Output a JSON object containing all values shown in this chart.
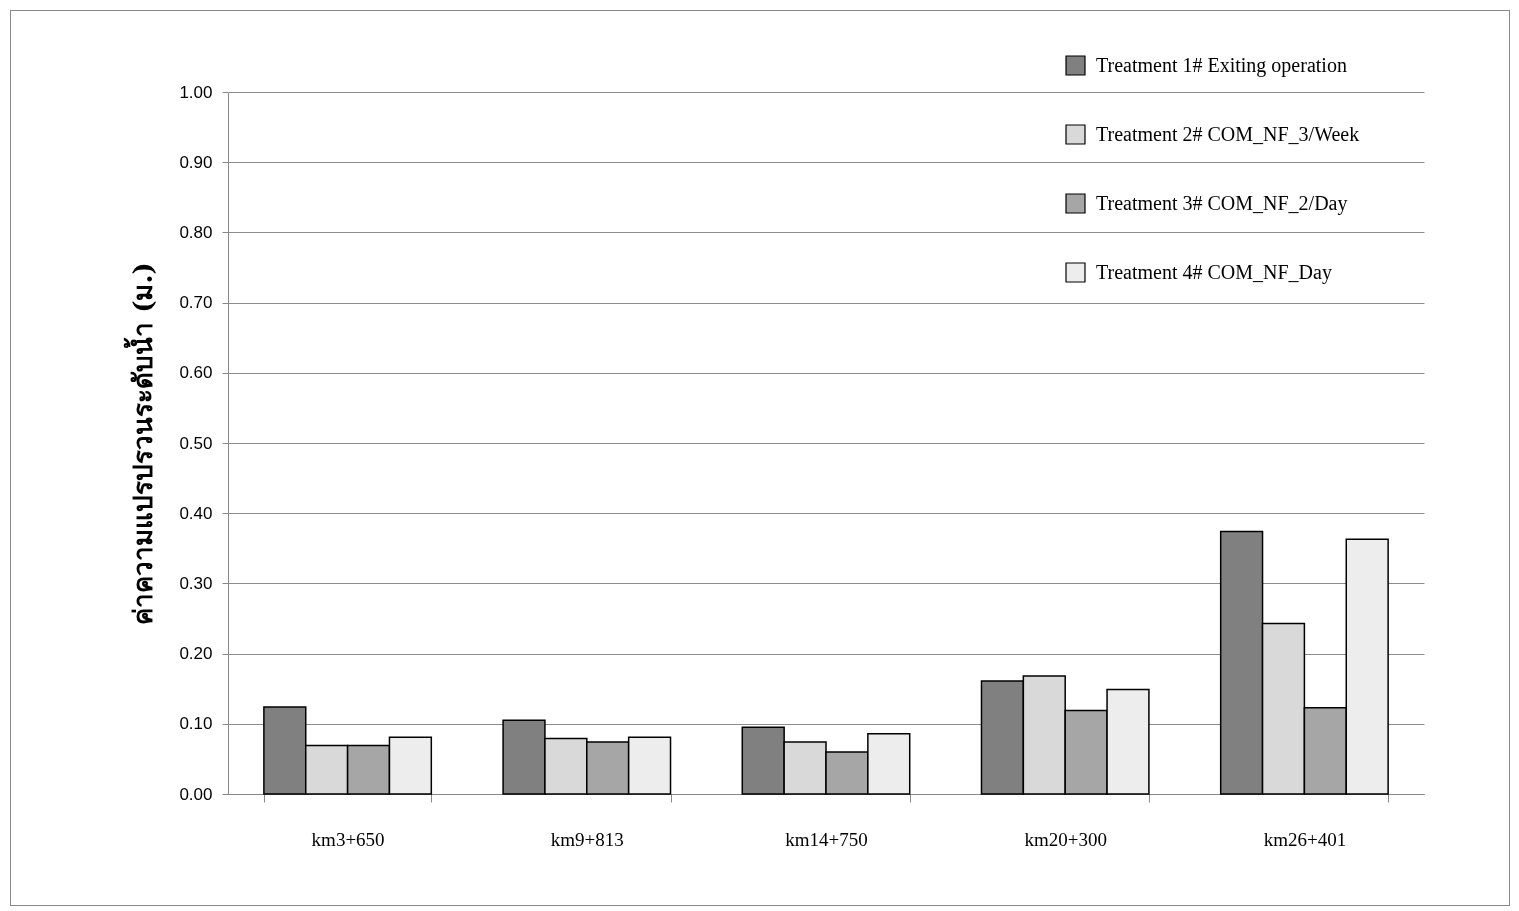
{
  "chart_data": {
    "type": "bar",
    "ylabel": "ค่าความแปรปรวนระดับน้ำ (ม.)",
    "categories": [
      "km3+650",
      "km9+813",
      "km14+750",
      "km20+300",
      "km26+401"
    ],
    "series": [
      {
        "name": "Treatment 1# Exiting operation",
        "color": "#808080",
        "values": [
          0.124,
          0.105,
          0.095,
          0.161,
          0.374
        ]
      },
      {
        "name": "Treatment 2# COM_NF_3/Week",
        "color": "#d9d9d9",
        "values": [
          0.069,
          0.079,
          0.074,
          0.168,
          0.243
        ]
      },
      {
        "name": "Treatment 3# COM_NF_2/Day",
        "color": "#a6a6a6",
        "values": [
          0.069,
          0.074,
          0.06,
          0.119,
          0.123
        ]
      },
      {
        "name": "Treatment 4# COM_NF_Day",
        "color": "#ededed",
        "values": [
          0.081,
          0.081,
          0.086,
          0.149,
          0.363
        ]
      }
    ],
    "ylim": [
      0,
      1
    ],
    "yticks": [
      {
        "value": 0,
        "label": "0.00"
      },
      {
        "value": 0.1,
        "label": "0.10"
      },
      {
        "value": 0.2,
        "label": "0.20"
      },
      {
        "value": 0.3,
        "label": "0.30"
      },
      {
        "value": 0.4,
        "label": "0.40"
      },
      {
        "value": 0.5,
        "label": "0.50"
      },
      {
        "value": 0.6,
        "label": "0.60"
      },
      {
        "value": 0.7,
        "label": "0.70"
      },
      {
        "value": 0.8,
        "label": "0.80"
      },
      {
        "value": 0.9,
        "label": "0.90"
      },
      {
        "value": 1,
        "label": "1.00"
      }
    ],
    "grid": "y",
    "legend": "top right"
  }
}
